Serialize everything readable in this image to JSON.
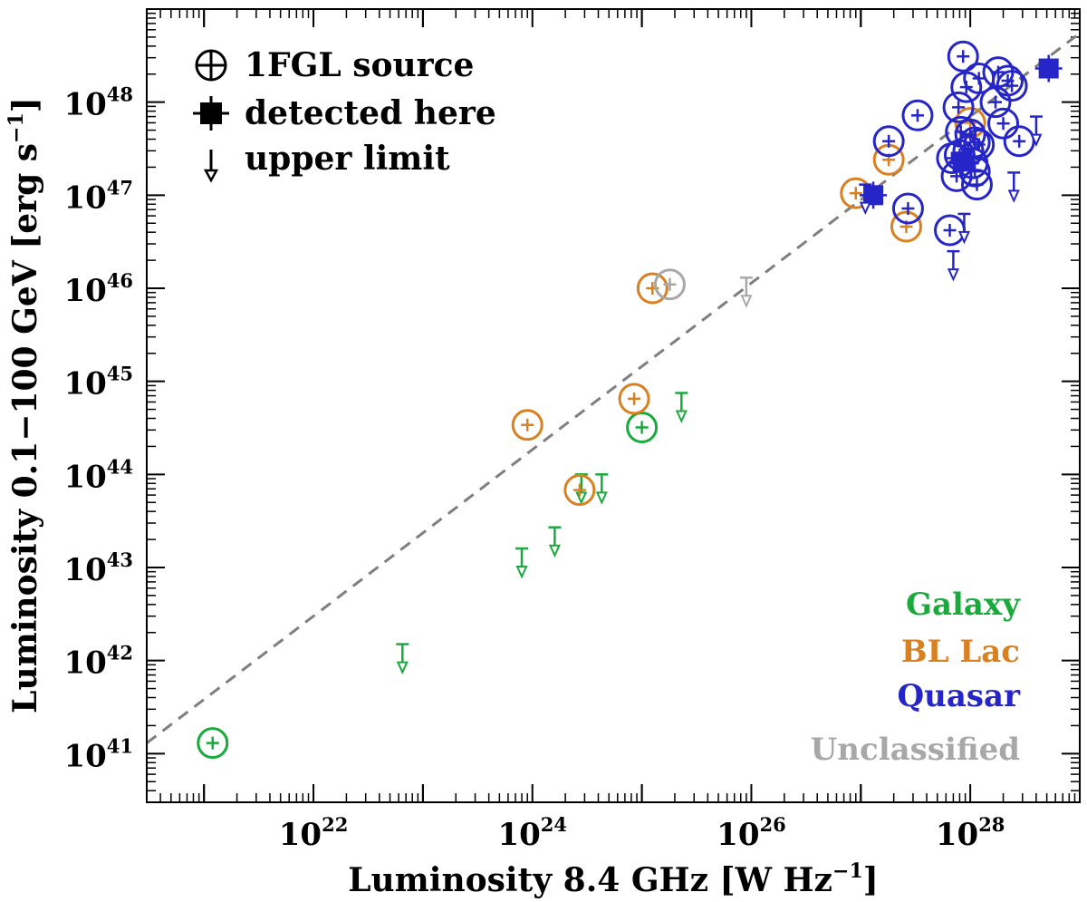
{
  "chart_data": {
    "type": "scatter",
    "xlabel": "Luminosity 8.4 GHz [W Hz−1]",
    "xlabel_parts": {
      "text": "Luminosity 8.4 GHz [W Hz",
      "sup": "−1",
      "close": "]"
    },
    "ylabel": "Luminosity 0.1−100 GeV [erg s−1]",
    "ylabel_parts": {
      "text": "Luminosity 0.1−100 GeV [erg s",
      "sup": "−1",
      "close": "]"
    },
    "x_scale": "log",
    "y_scale": "log",
    "xlim": [
      3e+20,
      1e+29
    ],
    "ylim": [
      3e+40,
      1e+49
    ],
    "x_ticks": [
      {
        "value": 1e+22,
        "base": "10",
        "exp": "22"
      },
      {
        "value": 1e+24,
        "base": "10",
        "exp": "24"
      },
      {
        "value": 1e+26,
        "base": "10",
        "exp": "26"
      },
      {
        "value": 1e+28,
        "base": "10",
        "exp": "28"
      }
    ],
    "y_ticks": [
      {
        "value": 1e+41,
        "base": "10",
        "exp": "41"
      },
      {
        "value": 1e+42,
        "base": "10",
        "exp": "42"
      },
      {
        "value": 1e+43,
        "base": "10",
        "exp": "43"
      },
      {
        "value": 1e+44,
        "base": "10",
        "exp": "44"
      },
      {
        "value": 1e+45,
        "base": "10",
        "exp": "45"
      },
      {
        "value": 1e+46,
        "base": "10",
        "exp": "46"
      },
      {
        "value": 1e+47,
        "base": "10",
        "exp": "47"
      },
      {
        "value": 1e+48,
        "base": "10",
        "exp": "48"
      }
    ],
    "reference_line": {
      "style": "dashed",
      "color": "#7f7f7f",
      "from": [
        3e+20,
        1.3e+41
      ],
      "to": [
        1e+29,
        5.5e+48
      ]
    },
    "legend": {
      "position": "top-left",
      "entries": [
        {
          "marker": "open-circle-errorbar",
          "label": "1FGL source"
        },
        {
          "marker": "filled-square-errorbar",
          "label": "detected here"
        },
        {
          "marker": "arrow-down",
          "label": "upper limit"
        }
      ]
    },
    "class_legend": {
      "position": "bottom-right",
      "entries": [
        {
          "label": "Galaxy",
          "color": "#1aaa3c"
        },
        {
          "label": "BL Lac",
          "color": "#d98020"
        },
        {
          "label": "Quasar",
          "color": "#2525c8"
        },
        {
          "label": "Unclassified",
          "color": "#a8a8a8"
        }
      ]
    },
    "series": [
      {
        "name": "Galaxy",
        "color": "#1aaa3c",
        "fgl_sources": [
          [
            1.2e+21,
            1.3e+41
          ],
          [
            1e+25,
            3.2e+44
          ]
        ],
        "detected": [],
        "upper_limits": [
          [
            6.5e+22,
            1.5e+42
          ],
          [
            8e+23,
            1.6e+43
          ],
          [
            1.6e+24,
            2.7e+43
          ],
          [
            2.8e+24,
            1e+44
          ],
          [
            4.3e+24,
            1e+44
          ],
          [
            2.3e+25,
            7.5e+44
          ]
        ]
      },
      {
        "name": "BL Lac",
        "color": "#d98020",
        "fgl_sources": [
          [
            9e+23,
            3.4e+44
          ],
          [
            2.7e+24,
            6.8e+43
          ],
          [
            8.5e+24,
            6.5e+44
          ],
          [
            1.25e+25,
            1e+46
          ],
          [
            9e+26,
            1.05e+47
          ],
          [
            1.8e+27,
            2.4e+47
          ],
          [
            2.6e+27,
            4.6e+46
          ],
          [
            1e+28,
            6e+47
          ]
        ],
        "detected": [],
        "upper_limits": []
      },
      {
        "name": "Quasar",
        "color": "#2525c8",
        "fgl_sources": [
          [
            1.8e+27,
            3.8e+47
          ],
          [
            2.7e+27,
            7.2e+46
          ],
          [
            3.3e+27,
            7.2e+47
          ],
          [
            6.5e+27,
            4.2e+46
          ],
          [
            6.8e+27,
            2.5e+47
          ],
          [
            7.5e+27,
            1.6e+47
          ],
          [
            7.8e+27,
            8.8e+47
          ],
          [
            8e+27,
            2.7e+47
          ],
          [
            8.2e+27,
            4.8e+47
          ],
          [
            8.6e+27,
            3.1e+48
          ],
          [
            9.2e+27,
            1.45e+48
          ],
          [
            9.6e+27,
            3e+47
          ],
          [
            1e+28,
            4.5e+47
          ],
          [
            1.05e+28,
            2.2e+47
          ],
          [
            1.1e+28,
            1.8e+47
          ],
          [
            1.1e+28,
            3.7e+47
          ],
          [
            1.15e+28,
            1.3e+47
          ],
          [
            1.2e+28,
            3.5e+47
          ],
          [
            1.2e+28,
            1.8e+48
          ],
          [
            1.7e+28,
            1e+48
          ],
          [
            1.8e+28,
            2.1e+48
          ],
          [
            2e+28,
            5.9e+47
          ],
          [
            2.2e+28,
            1.7e+48
          ],
          [
            2.4e+28,
            1.5e+48
          ],
          [
            2.8e+28,
            3.8e+47
          ]
        ],
        "detected": [
          [
            1.3e+27,
            1e+47
          ],
          [
            8.5e+27,
            2.3e+47
          ],
          [
            5.2e+28,
            2.3e+48
          ]
        ],
        "upper_limits": [
          [
            1.1e+27,
            1.3e+47
          ],
          [
            7e+27,
            2.5e+46
          ],
          [
            8.8e+27,
            6.3e+46
          ],
          [
            2.5e+28,
            1.75e+47
          ],
          [
            4e+28,
            7e+47
          ]
        ]
      },
      {
        "name": "Unclassified",
        "color": "#a8a8a8",
        "fgl_sources": [
          [
            1.8e+25,
            1.1e+46
          ]
        ],
        "detected": [],
        "upper_limits": [
          [
            9e+25,
            1.3e+46
          ]
        ]
      }
    ]
  }
}
